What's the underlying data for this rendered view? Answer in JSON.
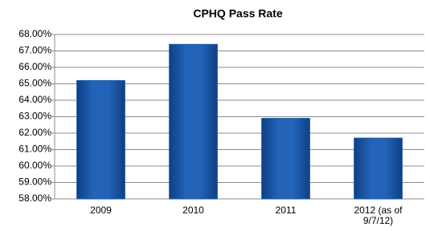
{
  "chart_data": {
    "type": "bar",
    "title": "CPHQ Pass Rate",
    "categories": [
      "2009",
      "2010",
      "2011",
      "2012 (as of 9/7/12)"
    ],
    "values": [
      65.2,
      67.4,
      62.9,
      61.7
    ],
    "color": "#1f5bab",
    "ylim": [
      58,
      68
    ],
    "yticks": [
      {
        "value": 58,
        "label": "58.00%"
      },
      {
        "value": 59,
        "label": "59.00%"
      },
      {
        "value": 60,
        "label": "60.00%"
      },
      {
        "value": 61,
        "label": "61.00%"
      },
      {
        "value": 62,
        "label": "62.00%"
      },
      {
        "value": 63,
        "label": "63.00%"
      },
      {
        "value": 64,
        "label": "64.00%"
      },
      {
        "value": 65,
        "label": "65.00%"
      },
      {
        "value": 66,
        "label": "66.00%"
      },
      {
        "value": 67,
        "label": "67.00%"
      },
      {
        "value": 68,
        "label": "68.00%"
      }
    ],
    "grid": true
  }
}
